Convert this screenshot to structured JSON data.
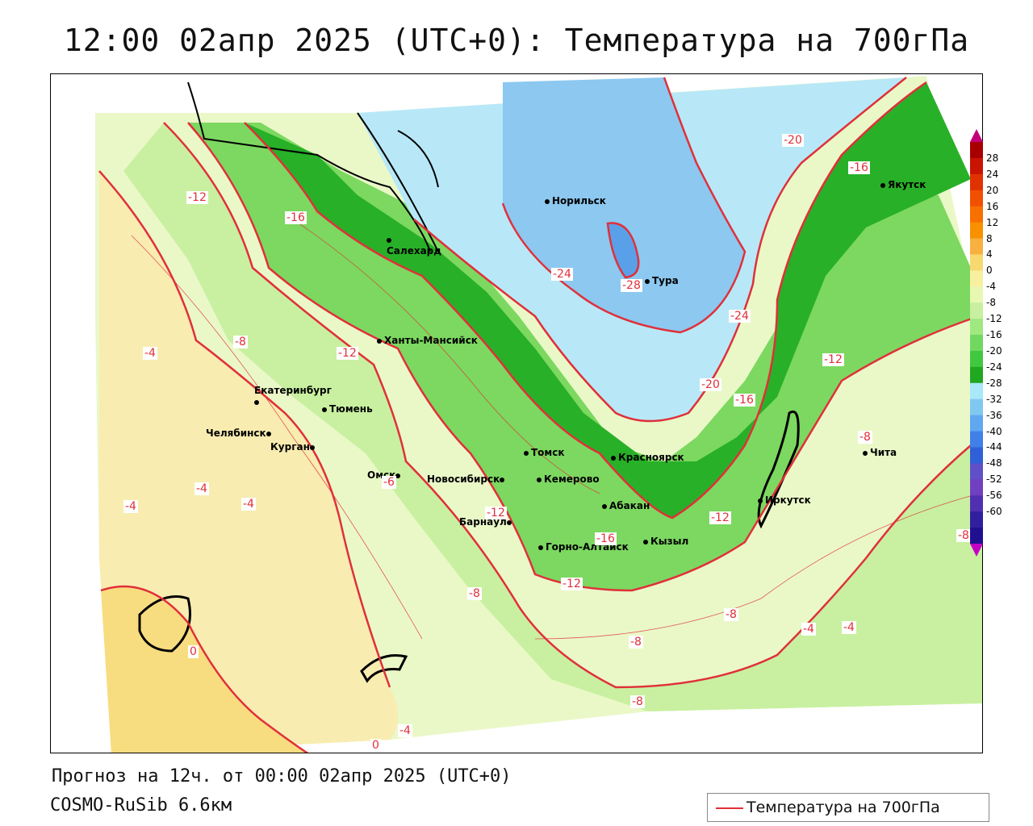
{
  "header": {
    "title": "12:00 02апр 2025 (UTC+0): Температура на 700гПа"
  },
  "footer": {
    "forecast": "Прогноз на 12ч. от 00:00 02апр 2025 (UTC+0)",
    "model": "COSMO-RuSib 6.6км"
  },
  "legend": {
    "label": "Температура на 700гПа",
    "color": "#e0303a"
  },
  "colorbar": {
    "ticks": [
      "28",
      "24",
      "20",
      "16",
      "12",
      "8",
      "4",
      "0",
      "-4",
      "-8",
      "-12",
      "-16",
      "-20",
      "-24",
      "-28",
      "-32",
      "-36",
      "-40",
      "-44",
      "-48",
      "-52",
      "-56",
      "-60"
    ],
    "colors": [
      "#c4007a",
      "#a80000",
      "#c81400",
      "#e03200",
      "#f05000",
      "#f87000",
      "#f89000",
      "#f8b040",
      "#f8d870",
      "#f8f0a0",
      "#e8f8b0",
      "#c8f0a0",
      "#a0e880",
      "#70d860",
      "#40c840",
      "#20a820",
      "#a8e8f8",
      "#80c8f0",
      "#60a8f0",
      "#4080e8",
      "#3060d8",
      "#6050c8",
      "#7040c0",
      "#5030b0",
      "#3020a0",
      "#201090",
      "#c400c4"
    ]
  },
  "cities": [
    {
      "name": "Норильск"
    },
    {
      "name": "Тура"
    },
    {
      "name": "Якутск"
    },
    {
      "name": "Салехард"
    },
    {
      "name": "Ханты-Мансийск"
    },
    {
      "name": "Екатеринбург"
    },
    {
      "name": "Тюмень"
    },
    {
      "name": "Челябинск"
    },
    {
      "name": "Курган"
    },
    {
      "name": "Омск"
    },
    {
      "name": "Томск"
    },
    {
      "name": "Красноярск"
    },
    {
      "name": "Новосибирск"
    },
    {
      "name": "Кемерово"
    },
    {
      "name": "Абакан"
    },
    {
      "name": "Барнаул"
    },
    {
      "name": "Горно-Алтайск"
    },
    {
      "name": "Кызыл"
    },
    {
      "name": "Иркутск"
    },
    {
      "name": "Чита"
    }
  ],
  "contour_labels": [
    "-20",
    "-16",
    "-12",
    "-16",
    "-24",
    "-28",
    "-24",
    "-12",
    "-8",
    "-4",
    "-12",
    "-20",
    "-16",
    "-12",
    "-8",
    "-6",
    "-4",
    "-4",
    "-4",
    "-12",
    "-16",
    "-12",
    "-8",
    "-8",
    "-4",
    "-4",
    "-8",
    "-8",
    "0",
    "-4",
    "0",
    "-8"
  ]
}
